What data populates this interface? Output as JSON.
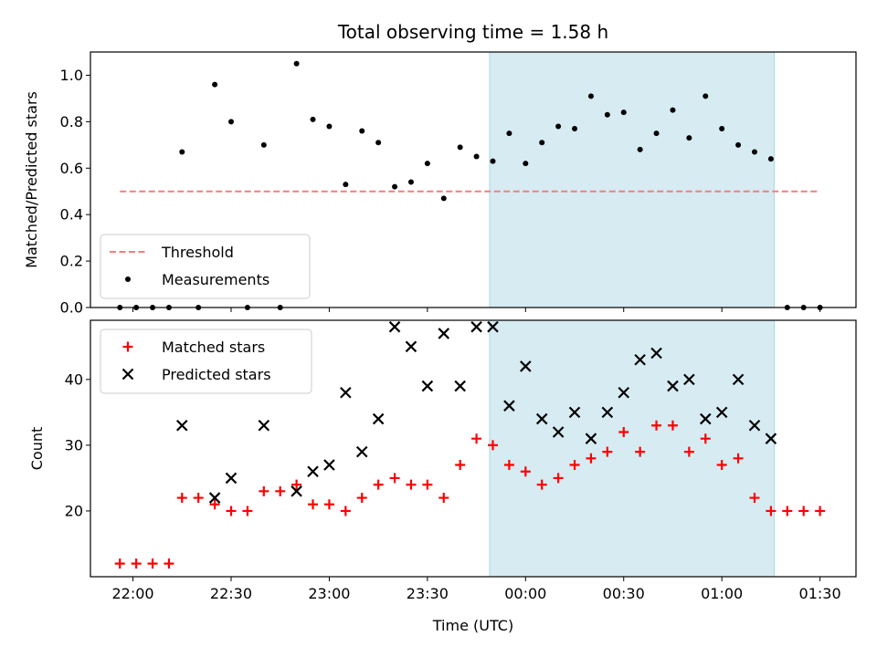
{
  "chart_data": {
    "title": "Total observing time = 1.58 h",
    "xlabel": "Time (UTC)",
    "x_ticks": [
      "22:00",
      "22:30",
      "23:00",
      "23:30",
      "00:00",
      "00:30",
      "01:00",
      "01:30"
    ],
    "x_tick_times": [
      "22:00",
      "22:30",
      "23:00",
      "23:30",
      "00:00",
      "00:30",
      "01:00",
      "01:30"
    ],
    "xlim": [
      "21:47",
      "01:41"
    ],
    "shaded_span": [
      "23:49",
      "01:16"
    ],
    "shade_color": "#add8e6",
    "panels": [
      {
        "type": "scatter",
        "ylabel": "Matched/Predicted stars",
        "ylim": [
          0,
          1.1
        ],
        "y_ticks": [
          "0.0",
          "0.2",
          "0.4",
          "0.6",
          "0.8",
          "1.0"
        ],
        "legend_position": "lower-left",
        "threshold": {
          "name": "Threshold",
          "y": 0.5,
          "x_range": [
            "21:56",
            "01:30"
          ],
          "color": "#f08080",
          "style": "dashed"
        },
        "series": [
          {
            "name": "Measurements",
            "marker": "dot",
            "color": "#000000",
            "points": [
              [
                "21:56",
                0.0
              ],
              [
                "21:61",
                0.0
              ],
              [
                "22:06",
                0.0
              ],
              [
                "22:11",
                0.0
              ],
              [
                "22:15",
                0.67
              ],
              [
                "22:20",
                0.0
              ],
              [
                "22:25",
                0.96
              ],
              [
                "22:30",
                0.8
              ],
              [
                "22:35",
                0.0
              ],
              [
                "22:40",
                0.7
              ],
              [
                "22:45",
                0.0
              ],
              [
                "22:50",
                1.05
              ],
              [
                "22:55",
                0.81
              ],
              [
                "23:00",
                0.78
              ],
              [
                "23:05",
                0.53
              ],
              [
                "23:10",
                0.76
              ],
              [
                "23:15",
                0.71
              ],
              [
                "23:20",
                0.52
              ],
              [
                "23:25",
                0.54
              ],
              [
                "23:30",
                0.62
              ],
              [
                "23:35",
                0.47
              ],
              [
                "23:40",
                0.69
              ],
              [
                "23:45",
                0.65
              ],
              [
                "23:50",
                0.63
              ],
              [
                "23:55",
                0.75
              ],
              [
                "00:00",
                0.62
              ],
              [
                "00:05",
                0.71
              ],
              [
                "00:10",
                0.78
              ],
              [
                "00:15",
                0.77
              ],
              [
                "00:20",
                0.91
              ],
              [
                "00:25",
                0.83
              ],
              [
                "00:30",
                0.84
              ],
              [
                "00:35",
                0.68
              ],
              [
                "00:40",
                0.75
              ],
              [
                "00:45",
                0.85
              ],
              [
                "00:50",
                0.73
              ],
              [
                "00:55",
                0.91
              ],
              [
                "01:00",
                0.77
              ],
              [
                "01:05",
                0.7
              ],
              [
                "01:10",
                0.67
              ],
              [
                "01:15",
                0.64
              ],
              [
                "01:20",
                0.0
              ],
              [
                "01:25",
                0.0
              ],
              [
                "01:30",
                0.0
              ]
            ]
          }
        ]
      },
      {
        "type": "scatter",
        "ylabel": "Count",
        "ylim": [
          10,
          49
        ],
        "y_ticks": [
          "20",
          "30",
          "40"
        ],
        "legend_position": "upper-left",
        "series": [
          {
            "name": "Matched stars",
            "marker": "plus",
            "color": "#ff0000",
            "points": [
              [
                "21:56",
                12
              ],
              [
                "22:01",
                12
              ],
              [
                "22:06",
                12
              ],
              [
                "22:11",
                12
              ],
              [
                "22:15",
                22
              ],
              [
                "22:20",
                22
              ],
              [
                "22:25",
                21
              ],
              [
                "22:30",
                20
              ],
              [
                "22:35",
                20
              ],
              [
                "22:40",
                23
              ],
              [
                "22:45",
                23
              ],
              [
                "22:50",
                24
              ],
              [
                "22:55",
                21
              ],
              [
                "23:00",
                21
              ],
              [
                "23:05",
                20
              ],
              [
                "23:10",
                22
              ],
              [
                "23:15",
                24
              ],
              [
                "23:20",
                25
              ],
              [
                "23:25",
                24
              ],
              [
                "23:30",
                24
              ],
              [
                "23:35",
                22
              ],
              [
                "23:40",
                27
              ],
              [
                "23:45",
                31
              ],
              [
                "23:50",
                30
              ],
              [
                "23:55",
                27
              ],
              [
                "00:00",
                26
              ],
              [
                "00:05",
                24
              ],
              [
                "00:10",
                25
              ],
              [
                "00:15",
                27
              ],
              [
                "00:20",
                28
              ],
              [
                "00:25",
                29
              ],
              [
                "00:30",
                32
              ],
              [
                "00:35",
                29
              ],
              [
                "00:40",
                33
              ],
              [
                "00:45",
                33
              ],
              [
                "00:50",
                29
              ],
              [
                "00:55",
                31
              ],
              [
                "01:00",
                27
              ],
              [
                "01:05",
                28
              ],
              [
                "01:10",
                22
              ],
              [
                "01:15",
                20
              ],
              [
                "01:20",
                20
              ],
              [
                "01:25",
                20
              ],
              [
                "01:30",
                20
              ]
            ]
          },
          {
            "name": "Predicted stars",
            "marker": "x",
            "color": "#000000",
            "points": [
              [
                "22:15",
                33
              ],
              [
                "22:25",
                22
              ],
              [
                "22:30",
                25
              ],
              [
                "22:40",
                33
              ],
              [
                "22:50",
                23
              ],
              [
                "22:55",
                26
              ],
              [
                "23:00",
                27
              ],
              [
                "23:05",
                38
              ],
              [
                "23:10",
                29
              ],
              [
                "23:15",
                34
              ],
              [
                "23:20",
                48
              ],
              [
                "23:25",
                45
              ],
              [
                "23:30",
                39
              ],
              [
                "23:35",
                47
              ],
              [
                "23:40",
                39
              ],
              [
                "23:45",
                48
              ],
              [
                "23:50",
                48
              ],
              [
                "23:55",
                36
              ],
              [
                "00:00",
                42
              ],
              [
                "00:05",
                34
              ],
              [
                "00:10",
                32
              ],
              [
                "00:15",
                35
              ],
              [
                "00:20",
                31
              ],
              [
                "00:25",
                35
              ],
              [
                "00:30",
                38
              ],
              [
                "00:35",
                43
              ],
              [
                "00:40",
                44
              ],
              [
                "00:45",
                39
              ],
              [
                "00:50",
                40
              ],
              [
                "00:55",
                34
              ],
              [
                "01:00",
                35
              ],
              [
                "01:05",
                40
              ],
              [
                "01:10",
                33
              ],
              [
                "01:15",
                31
              ]
            ]
          }
        ]
      }
    ]
  }
}
